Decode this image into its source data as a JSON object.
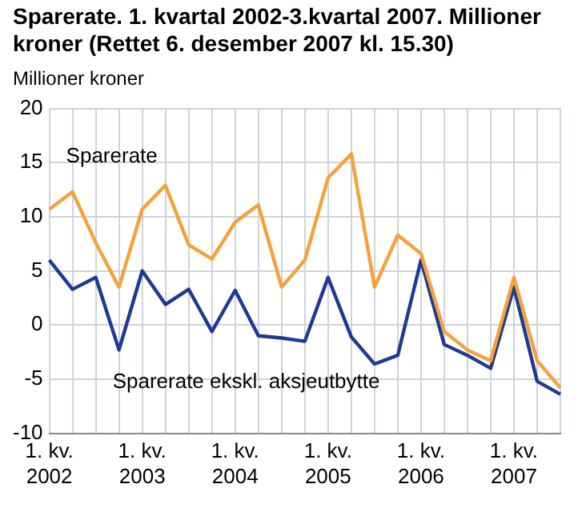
{
  "chart_data": {
    "type": "line",
    "title": "Sparerate. 1. kvartal 2002-3.kvartal 2007. Millioner kroner (Rettet 6. desember 2007 kl. 15.30)",
    "ylabel": "Millioner kroner",
    "categories": [
      "1. kv. 2002",
      null,
      null,
      null,
      "1. kv. 2003",
      null,
      null,
      null,
      "1. kv. 2004",
      null,
      null,
      null,
      "1. kv. 2005",
      null,
      null,
      null,
      "1. kv. 2006",
      null,
      null,
      null,
      "1. kv. 2007",
      null,
      null
    ],
    "series": [
      {
        "name": "Sparerate",
        "color": "#f7a13a",
        "values": [
          10.7,
          12.3,
          7.6,
          3.5,
          10.7,
          12.9,
          7.4,
          6.1,
          9.5,
          11.1,
          3.5,
          6.0,
          13.6,
          15.8,
          3.5,
          8.3,
          6.6,
          -0.6,
          -2.3,
          -3.3,
          4.4,
          -3.3,
          -5.8
        ]
      },
      {
        "name": "Sparerate ekskl. aksjeutbytte",
        "color": "#1f3a93",
        "values": [
          6.0,
          3.3,
          4.4,
          -2.3,
          5.0,
          1.9,
          3.3,
          -0.6,
          3.2,
          -1.0,
          -1.2,
          -1.5,
          4.4,
          -1.1,
          -3.6,
          -2.8,
          6.0,
          -1.8,
          -2.8,
          -4.0,
          3.5,
          -5.2,
          -6.4
        ]
      }
    ],
    "ylim": [
      -10,
      20
    ],
    "yticks": [
      -10,
      -5,
      0,
      5,
      10,
      15,
      20
    ],
    "grid": true,
    "legend": false,
    "marker": "none",
    "line_style": "solid"
  }
}
